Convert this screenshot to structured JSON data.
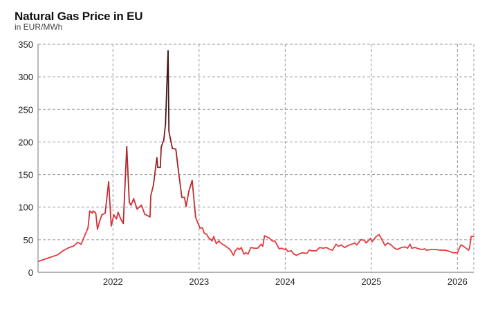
{
  "chart_data": {
    "type": "line",
    "title": "Natural Gas Price in EU",
    "subtitle": "in EUR/MWh",
    "xlabel": "",
    "ylabel": "EUR/MWh",
    "xlim": [
      2021.13,
      2026.19
    ],
    "ylim": [
      0,
      350
    ],
    "yticks": [
      0,
      50,
      100,
      150,
      200,
      250,
      300,
      350
    ],
    "xticks": [
      2022,
      2023,
      2024,
      2025,
      2026
    ],
    "xtick_labels": [
      "2022",
      "2023",
      "2024",
      "2025",
      "2026"
    ],
    "grid": true,
    "colors": {
      "low": "#e8383d",
      "mid": "#8e1c1f",
      "high": "#141010"
    },
    "series": [
      {
        "name": "Natural Gas Price",
        "x": [
          2021.14,
          2021.25,
          2021.36,
          2021.42,
          2021.49,
          2021.54,
          2021.59,
          2021.63,
          2021.71,
          2021.73,
          2021.76,
          2021.77,
          2021.8,
          2021.82,
          2021.84,
          2021.87,
          2021.91,
          2021.95,
          2021.98,
          2022.01,
          2022.04,
          2022.06,
          2022.09,
          2022.12,
          2022.16,
          2022.19,
          2022.21,
          2022.24,
          2022.28,
          2022.33,
          2022.37,
          2022.43,
          2022.44,
          2022.47,
          2022.51,
          2022.52,
          2022.55,
          2022.56,
          2022.59,
          2022.61,
          2022.64,
          2022.65,
          2022.69,
          2022.73,
          2022.76,
          2022.8,
          2022.83,
          2022.85,
          2022.88,
          2022.92,
          2022.96,
          2023.01,
          2023.04,
          2023.06,
          2023.09,
          2023.11,
          2023.14,
          2023.15,
          2023.17,
          2023.2,
          2023.23,
          2023.26,
          2023.31,
          2023.36,
          2023.4,
          2023.42,
          2023.45,
          2023.47,
          2023.49,
          2023.52,
          2023.54,
          2023.57,
          2023.6,
          2023.64,
          2023.68,
          2023.72,
          2023.74,
          2023.76,
          2023.81,
          2023.85,
          2023.88,
          2023.93,
          2023.96,
          2023.99,
          2024.01,
          2024.03,
          2024.07,
          2024.1,
          2024.13,
          2024.16,
          2024.2,
          2024.25,
          2024.28,
          2024.31,
          2024.36,
          2024.4,
          2024.44,
          2024.48,
          2024.52,
          2024.55,
          2024.59,
          2024.62,
          2024.65,
          2024.69,
          2024.73,
          2024.77,
          2024.81,
          2024.83,
          2024.88,
          2024.92,
          2024.94,
          2024.99,
          2025.01,
          2025.05,
          2025.09,
          2025.12,
          2025.16,
          2025.19,
          2025.22,
          2025.27,
          2025.3,
          2025.35,
          2025.39,
          2025.42,
          2025.45,
          2025.47,
          2025.51,
          2025.55,
          2025.59,
          2025.62,
          2025.64,
          2025.7,
          2025.75,
          2025.8,
          2025.86,
          2025.91,
          2025.95,
          2026.0,
          2026.04,
          2026.07,
          2026.13,
          2026.14,
          2026.16,
          2026.19
        ],
        "y": [
          17,
          22,
          27,
          33,
          38,
          40,
          46,
          43,
          68,
          94,
          91,
          94,
          91,
          66,
          76,
          88,
          91,
          139,
          71,
          88,
          82,
          92,
          82,
          75,
          193,
          107,
          103,
          113,
          97,
          103,
          89,
          85,
          118,
          134,
          176,
          161,
          161,
          192,
          203,
          227,
          340,
          216,
          190,
          189,
          156,
          115,
          115,
          101,
          124,
          141,
          84,
          68,
          68,
          60,
          58,
          53,
          50,
          48,
          55,
          44,
          48,
          44,
          40,
          35,
          26,
          33,
          37,
          35,
          38,
          28,
          30,
          28,
          38,
          37,
          37,
          43,
          40,
          56,
          53,
          48,
          48,
          36,
          37,
          35,
          36,
          32,
          33,
          28,
          26,
          28,
          30,
          29,
          34,
          33,
          33,
          38,
          37,
          38,
          35,
          34,
          43,
          40,
          42,
          38,
          41,
          43,
          45,
          42,
          50,
          49,
          45,
          52,
          47,
          54,
          58,
          51,
          41,
          45,
          43,
          37,
          35,
          38,
          39,
          37,
          43,
          37,
          38,
          36,
          35,
          36,
          34,
          35,
          35,
          34,
          34,
          32,
          30,
          30,
          42,
          40,
          34,
          37,
          55,
          55
        ]
      }
    ]
  }
}
